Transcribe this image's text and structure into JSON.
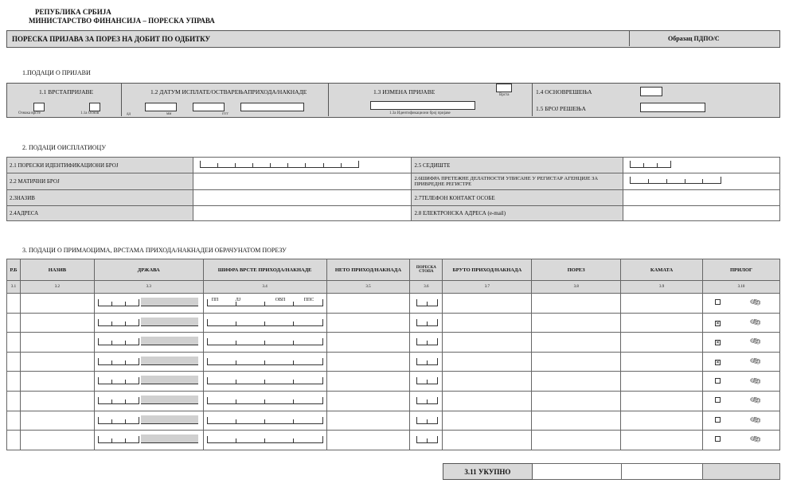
{
  "header": {
    "line1": "РЕПУБЛИКА СРБИЈА",
    "line2": "МИНИСТАРСТВО ФИНАНСИЈА – ПОРЕСКА УПРАВА"
  },
  "title": {
    "text": "ПОРЕСКА ПРИЈАВА ЗА ПОРЕЗ НА ДОБИТ ПО ОДБИТКУ",
    "form_code": "Образац ПДПО/С"
  },
  "section1": {
    "title": "1.ПОДАЦИ О ПРИЈАВИ",
    "f11": "1.1 ВРСТАПРИЈАВЕ",
    "f11_sub1": "Ознака врсте",
    "f11_sub2": "1.1а Основ",
    "f12": "1.2 ДАТУМ ИСПЛАТЕ/ОСТВАРЕЊАПРИХОДА/НАКНАДЕ",
    "dd": "дд",
    "mm": "мм",
    "yyyy": "гггг",
    "f13": "1.3 ИЗМЕНА ПРИЈАВЕ",
    "f13_sub": "Врста",
    "f13a": "1.3а Идентификациони број пријаве",
    "f14": "1.4 ОСНОВРЕШЕЊА",
    "f15": "1.5 БРОЈ РЕШЕЊА"
  },
  "section2": {
    "title": "2. ПОДАЦИ ОИСПЛАТИОЦУ",
    "f21": "2.1 ПОРЕСКИ ИДЕНТИФИКАЦИОНИ БРОЈ",
    "f22": "2.2 МАТИЧНИ БРОЈ",
    "f23": "2.3НАЗИВ",
    "f24": "2.4АДРЕСА",
    "f25": "2.5 СЕДИШТЕ",
    "f26": "2.6ШИФРА ПРЕТЕЖНЕ ДЕЛАТНОСТИ УПИСАНЕ У РЕГИСТАР АГЕНЦИЈЕ ЗА ПРИВРЕДНЕ РЕГИСТРЕ",
    "f27": "2.7ТЕЛЕФОН КОНТАКТ ОСОБЕ",
    "f28": "2.8 ЕЛЕКТРОНСКА АДРЕСА (e-mail)"
  },
  "section3": {
    "title": "3. ПОДАЦИ О ПРИМАОЦИМА, ВРСТАМА ПРИХОДА/НАКНАДЕИ ОБРАЧУНАТОМ ПОРЕЗУ",
    "columns": [
      "Р.Б",
      "НАЗИВ",
      "ДРЖАВА",
      "ШИФРА ВРСТЕ ПРИХОДА/НАКНАДЕ",
      "НЕТО ПРИХОД/НАКНАДА",
      "ПОРЕСКА СТОПА",
      "БРУТО ПРИХОД/НАКНАДА",
      "ПОРЕЗ",
      "КАМАТА",
      "ПРИЛОГ"
    ],
    "codes": [
      "3.1",
      "3.2",
      "3.3",
      "3.4",
      "3.5",
      "3.6",
      "3.7",
      "3.8",
      "3.9",
      "3.10"
    ],
    "income_code_parts": [
      "ПП",
      "ЛЈ",
      "ОВП",
      "ППС"
    ],
    "rows_attachment_checked": [
      false,
      true,
      true,
      true,
      false,
      false,
      false,
      false
    ],
    "total_label": "3.11 УКУПНО"
  }
}
